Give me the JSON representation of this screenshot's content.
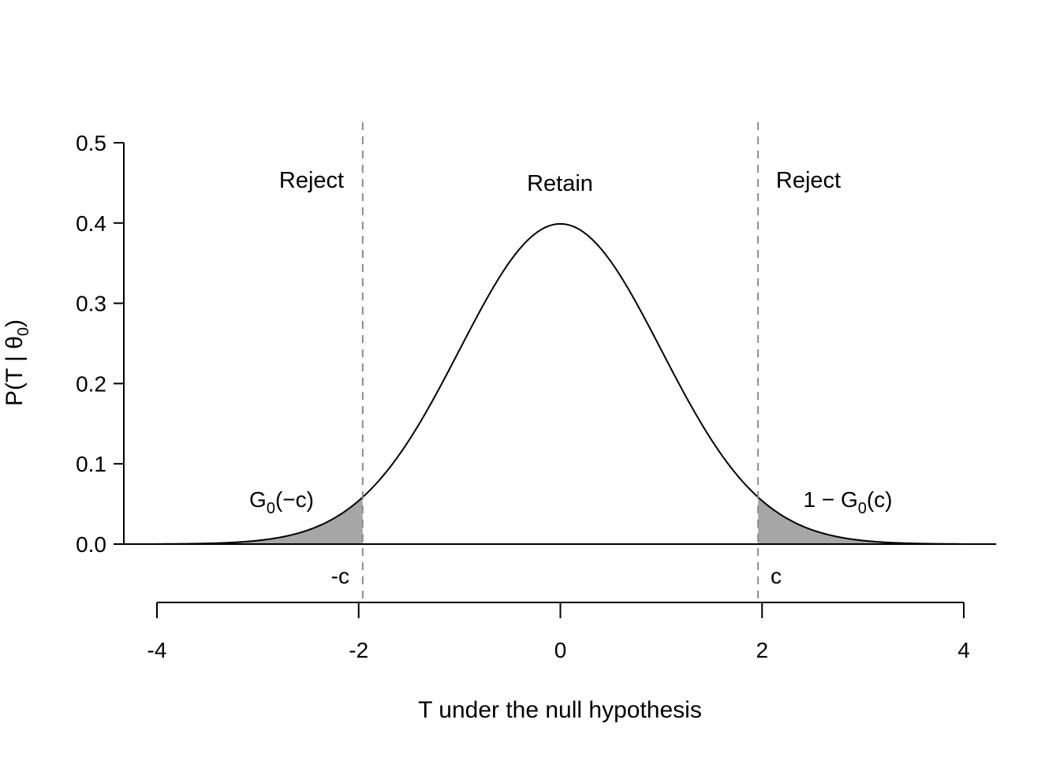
{
  "chart_data": {
    "type": "area",
    "title": "",
    "xlabel": "T under the null hypothesis",
    "ylabel": "P(T | θ0)",
    "xlim": [
      -4,
      4
    ],
    "ylim": [
      0,
      0.5
    ],
    "x_ticks": [
      "-4",
      "-2",
      "0",
      "2",
      "4"
    ],
    "y_ticks": [
      "0.0",
      "0.1",
      "0.2",
      "0.3",
      "0.4",
      "0.5"
    ],
    "distribution": "standard normal density",
    "critical_value": 1.96,
    "critical_labels": {
      "lower": "-c",
      "upper": "c"
    },
    "regions": [
      {
        "label": "Reject",
        "from": -4,
        "to": -1.96
      },
      {
        "label": "Retain",
        "from": -1.96,
        "to": 1.96
      },
      {
        "label": "Reject",
        "from": 1.96,
        "to": 4
      }
    ],
    "tail_annotations": {
      "lower": {
        "text": "G",
        "sub": "0",
        "arg": "(−c)"
      },
      "upper": {
        "prefix": "1 − ",
        "text": "G",
        "sub": "0",
        "arg": "(c)"
      }
    },
    "ylabel_parts": {
      "main": "P(T | θ",
      "sub": "0",
      "close": ")"
    },
    "shade_color": "#a6a6a6",
    "line_color": "#000000",
    "dashed_color": "#8c8c8c",
    "grid": false
  }
}
